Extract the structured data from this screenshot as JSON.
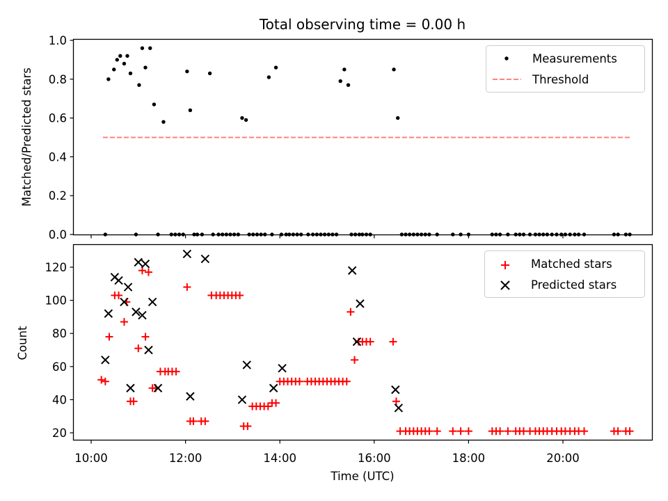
{
  "chart_data": {
    "type": "scatter",
    "title": "Total observing time = 0.00 h",
    "xlabel": "Time (UTC)",
    "x_ticks": [
      "10:00",
      "12:00",
      "14:00",
      "16:00",
      "18:00",
      "20:00"
    ],
    "panels": [
      {
        "ylabel": "Matched/Predicted stars",
        "ylim": [
          0,
          1.0
        ],
        "y_ticks": [
          "0.0",
          "0.2",
          "0.4",
          "0.6",
          "0.8",
          "1.0"
        ],
        "legend_position": "upper-right",
        "series": [
          {
            "name": "Measurements",
            "marker": "dot",
            "color": "#000000",
            "x": [
              "10:18",
              "10:22",
              "10:29",
              "10:33",
              "10:37",
              "10:42",
              "10:46",
              "10:50",
              "10:57",
              "11:01",
              "11:05",
              "11:09",
              "11:15",
              "11:20",
              "11:25",
              "11:32",
              "11:42",
              "11:47",
              "11:52",
              "11:57",
              "12:02",
              "12:06",
              "12:11",
              "12:15",
              "12:21",
              "12:31",
              "12:35",
              "12:42",
              "12:47",
              "12:52",
              "12:57",
              "13:02",
              "13:07",
              "13:12",
              "13:17",
              "13:21",
              "13:26",
              "13:31",
              "13:36",
              "13:41",
              "13:46",
              "13:50",
              "13:55",
              "14:02",
              "14:08",
              "14:12",
              "14:17",
              "14:22",
              "14:27",
              "14:36",
              "14:42",
              "14:47",
              "14:52",
              "14:57",
              "15:02",
              "15:07",
              "15:12",
              "15:17",
              "15:22",
              "15:27",
              "15:31",
              "15:36",
              "15:41",
              "15:45",
              "15:50",
              "15:55",
              "16:25",
              "16:30",
              "16:35",
              "16:40",
              "16:45",
              "16:50",
              "16:55",
              "17:00",
              "17:05",
              "17:10",
              "17:20",
              "17:40",
              "17:50",
              "18:00",
              "18:30",
              "18:35",
              "18:40",
              "18:50",
              "19:00",
              "19:05",
              "19:10",
              "19:18",
              "19:25",
              "19:30",
              "19:35",
              "19:40",
              "19:46",
              "19:52",
              "19:58",
              "20:03",
              "20:09",
              "20:15",
              "20:20",
              "20:27",
              "21:05",
              "21:10",
              "21:20",
              "21:25"
            ],
            "y": [
              0.0,
              0.8,
              0.85,
              0.9,
              0.92,
              0.88,
              0.92,
              0.83,
              0.0,
              0.77,
              0.96,
              0.86,
              0.96,
              0.67,
              0.0,
              0.58,
              0.0,
              0.0,
              0.0,
              0.0,
              0.84,
              0.64,
              0.0,
              0.0,
              0.0,
              0.83,
              0.0,
              0.0,
              0.0,
              0.0,
              0.0,
              0.0,
              0.0,
              0.6,
              0.59,
              0.0,
              0.0,
              0.0,
              0.0,
              0.0,
              0.81,
              0.0,
              0.86,
              0.0,
              0.0,
              0.0,
              0.0,
              0.0,
              0.0,
              0.0,
              0.0,
              0.0,
              0.0,
              0.0,
              0.0,
              0.0,
              0.0,
              0.79,
              0.85,
              0.77,
              0.0,
              0.0,
              0.0,
              0.0,
              0.0,
              0.0,
              0.85,
              0.6,
              0.0,
              0.0,
              0.0,
              0.0,
              0.0,
              0.0,
              0.0,
              0.0,
              0.0,
              0.0,
              0.0,
              0.0,
              0.0,
              0.0,
              0.0,
              0.0,
              0.0,
              0.0,
              0.0,
              0.0,
              0.0,
              0.0,
              0.0,
              0.0,
              0.0,
              0.0,
              0.0,
              0.0,
              0.0,
              0.0,
              0.0,
              0.0,
              0.0,
              0.0,
              0.0,
              0.0
            ]
          },
          {
            "name": "Threshold",
            "marker": "dashed-line",
            "color": "#ff8080",
            "x": [
              "10:15",
              "21:25"
            ],
            "y": [
              0.5,
              0.5
            ]
          }
        ]
      },
      {
        "ylabel": "Count",
        "ylim": [
          15,
          133
        ],
        "y_ticks": [
          "20",
          "40",
          "60",
          "80",
          "100",
          "120"
        ],
        "legend_position": "upper-right",
        "series": [
          {
            "name": "Matched stars",
            "marker": "plus",
            "color": "#ff0000",
            "x": [
              "10:13",
              "10:18",
              "10:23",
              "10:30",
              "10:35",
              "10:42",
              "10:45",
              "10:50",
              "10:54",
              "11:00",
              "11:05",
              "11:09",
              "11:13",
              "11:18",
              "11:22",
              "11:28",
              "11:34",
              "11:38",
              "11:43",
              "11:48",
              "12:02",
              "12:06",
              "12:10",
              "12:20",
              "12:25",
              "12:33",
              "12:39",
              "12:44",
              "12:49",
              "12:54",
              "12:59",
              "13:04",
              "13:09",
              "13:14",
              "13:19",
              "13:25",
              "13:30",
              "13:35",
              "13:40",
              "13:45",
              "13:50",
              "13:55",
              "14:00",
              "14:05",
              "14:10",
              "14:15",
              "14:20",
              "14:25",
              "14:35",
              "14:40",
              "14:45",
              "14:50",
              "14:55",
              "15:00",
              "15:05",
              "15:10",
              "15:15",
              "15:20",
              "15:25",
              "15:30",
              "15:35",
              "15:40",
              "15:45",
              "15:50",
              "15:55",
              "16:24",
              "16:28",
              "16:33",
              "16:40",
              "16:45",
              "16:50",
              "16:55",
              "17:00",
              "17:05",
              "17:10",
              "17:20",
              "17:40",
              "17:50",
              "18:00",
              "18:30",
              "18:35",
              "18:40",
              "18:50",
              "19:00",
              "19:05",
              "19:10",
              "19:18",
              "19:25",
              "19:30",
              "19:35",
              "19:40",
              "19:46",
              "19:52",
              "19:58",
              "20:03",
              "20:09",
              "20:15",
              "20:20",
              "20:27",
              "21:05",
              "21:10",
              "21:20",
              "21:25"
            ],
            "y": [
              52,
              51,
              78,
              103,
              103,
              87,
              99,
              39,
              39,
              71,
              118,
              78,
              117,
              47,
              47,
              57,
              57,
              57,
              57,
              57,
              108,
              27,
              27,
              27,
              27,
              103,
              103,
              103,
              103,
              103,
              103,
              103,
              103,
              24,
              24,
              36,
              36,
              36,
              36,
              36,
              38,
              38,
              51,
              51,
              51,
              51,
              51,
              51,
              51,
              51,
              51,
              51,
              51,
              51,
              51,
              51,
              51,
              51,
              51,
              93,
              64,
              75,
              75,
              75,
              75,
              75,
              39,
              21,
              21,
              21,
              21,
              21,
              21,
              21,
              21,
              21,
              21,
              21,
              21,
              21,
              21,
              21,
              21,
              21,
              21,
              21,
              21,
              21,
              21,
              21,
              21,
              21,
              21,
              21,
              21,
              21,
              21,
              21,
              21,
              21,
              21,
              21,
              21
            ]
          },
          {
            "name": "Predicted stars",
            "marker": "x",
            "color": "#000000",
            "x": [
              "10:18",
              "10:22",
              "10:30",
              "10:35",
              "10:42",
              "10:47",
              "10:50",
              "10:57",
              "11:00",
              "11:05",
              "11:09",
              "11:13",
              "11:18",
              "11:25",
              "12:02",
              "12:06",
              "12:25",
              "13:12",
              "13:18",
              "13:52",
              "14:03",
              "15:32",
              "15:38",
              "15:42",
              "16:27",
              "16:31"
            ],
            "y": [
              64,
              92,
              114,
              112,
              99,
              108,
              47,
              93,
              123,
              91,
              122,
              70,
              99,
              47,
              128,
              42,
              125,
              40,
              61,
              47,
              59,
              118,
              75,
              98,
              46,
              35
            ]
          }
        ]
      }
    ]
  }
}
